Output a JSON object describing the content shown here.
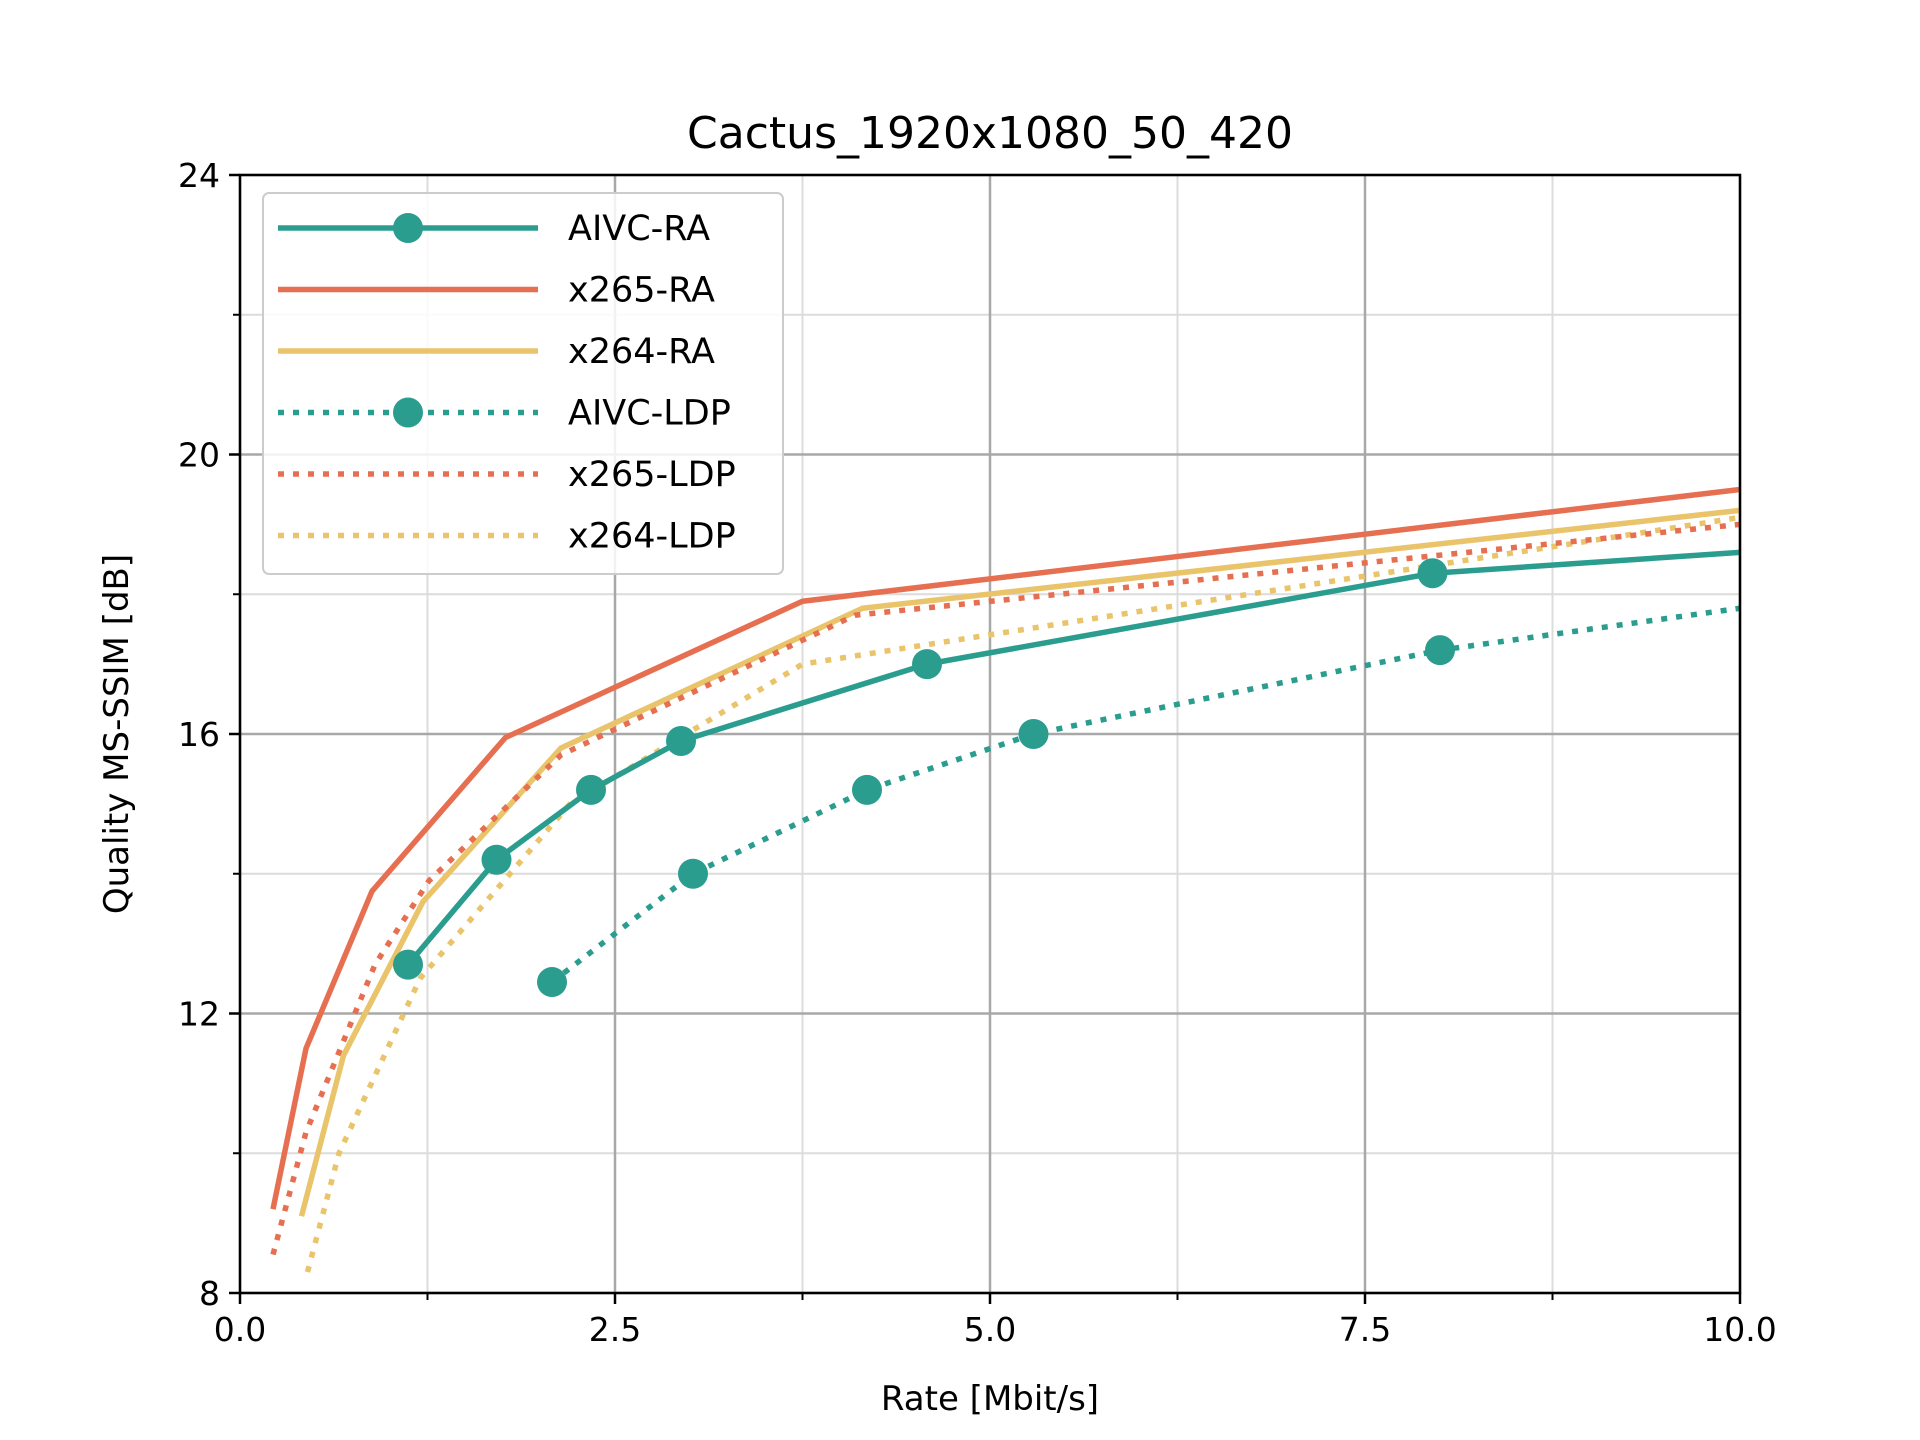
{
  "chart_data": {
    "type": "line",
    "title": "Cactus_1920x1080_50_420",
    "xlabel": "Rate [Mbit/s]",
    "ylabel": "Quality MS-SSIM [dB]",
    "xlim": [
      0,
      10
    ],
    "ylim": [
      8,
      24
    ],
    "xticks": [
      "0.0",
      "2.5",
      "5.0",
      "7.5",
      "10.0"
    ],
    "yticks": [
      "8",
      "12",
      "16",
      "20",
      "24"
    ],
    "grid": true,
    "legend_position": "upper-left",
    "series": [
      {
        "name": "AIVC-RA",
        "color": "#2a9d8f",
        "style": "solid",
        "markers": true,
        "x": [
          1.12,
          1.71,
          2.34,
          2.94,
          4.58,
          7.95,
          10.0
        ],
        "y": [
          12.7,
          14.2,
          15.2,
          15.9,
          17.0,
          18.3,
          18.6
        ]
      },
      {
        "name": "x265-RA",
        "color": "#e76f51",
        "style": "solid",
        "markers": false,
        "x": [
          0.22,
          0.44,
          0.88,
          1.77,
          3.75,
          10.0
        ],
        "y": [
          9.2,
          11.5,
          13.75,
          15.95,
          17.9,
          19.5
        ]
      },
      {
        "name": "x264-RA",
        "color": "#e9c46a",
        "style": "solid",
        "markers": false,
        "x": [
          0.41,
          0.69,
          1.22,
          2.14,
          4.15,
          10.0
        ],
        "y": [
          9.1,
          11.4,
          13.6,
          15.8,
          17.8,
          19.2
        ]
      },
      {
        "name": "AIVC-LDP",
        "color": "#2a9d8f",
        "style": "dotted",
        "markers": true,
        "x": [
          2.08,
          3.02,
          4.18,
          5.29,
          8.0,
          10.0
        ],
        "y": [
          12.45,
          14.0,
          15.2,
          16.0,
          17.2,
          17.8
        ]
      },
      {
        "name": "x265-LDP",
        "color": "#e76f51",
        "style": "dotted",
        "markers": false,
        "x": [
          0.22,
          0.44,
          0.9,
          1.26,
          2.14,
          4.1,
          10.0
        ],
        "y": [
          8.55,
          10.3,
          12.7,
          13.9,
          15.7,
          17.7,
          19.0
        ]
      },
      {
        "name": "x264-LDP",
        "color": "#e9c46a",
        "style": "dotted",
        "markers": false,
        "x": [
          0.45,
          0.66,
          1.2,
          2.2,
          3.75,
          10.0
        ],
        "y": [
          8.3,
          10.0,
          12.5,
          15.0,
          17.0,
          19.1
        ]
      }
    ]
  }
}
